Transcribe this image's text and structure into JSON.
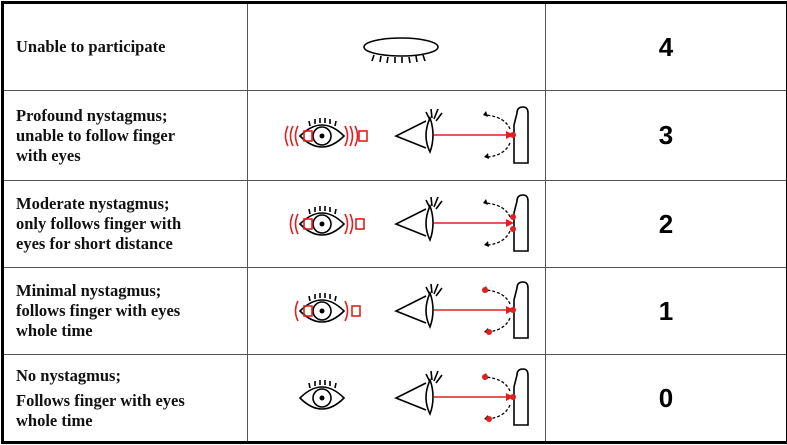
{
  "table": {
    "rows": [
      {
        "label": [
          "Unable to participate"
        ],
        "score": 4
      },
      {
        "label": [
          "Profound nystagmus;",
          "unable to follow finger",
          "with eyes"
        ],
        "score": 3
      },
      {
        "label": [
          "Moderate nystagmus;",
          "only follows finger with",
          "eyes for short distance"
        ],
        "score": 2
      },
      {
        "label": [
          "Minimal nystagmus;",
          "follows finger with eyes",
          "whole time"
        ],
        "score": 1
      },
      {
        "label": [
          "No nystagmus;",
          "Follows finger with eyes",
          "whole time"
        ],
        "score": 0
      }
    ]
  }
}
